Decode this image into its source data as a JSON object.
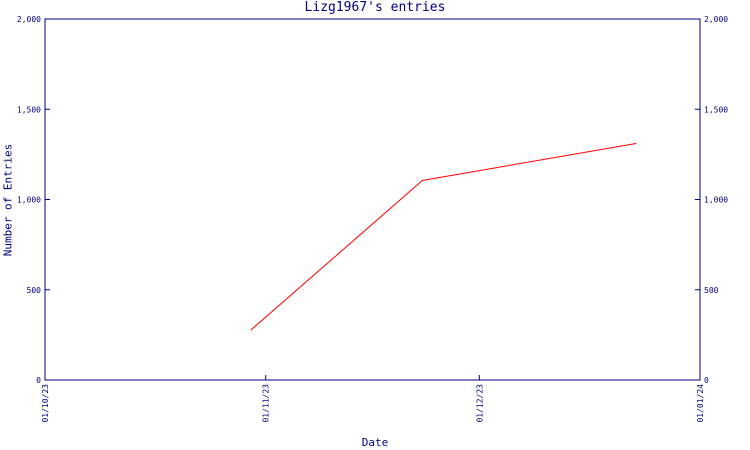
{
  "chart_data": {
    "type": "line",
    "title": "Lizg1967's entries",
    "xlabel": "Date",
    "ylabel": "Number of Entries",
    "x_ticks": [
      "01/10/23",
      "01/11/23",
      "01/12/23",
      "01/01/24"
    ],
    "y_ticks": [
      "0",
      "500",
      "1,000",
      "1,500",
      "2,000"
    ],
    "ylim": [
      0,
      2000
    ],
    "xlim": [
      "2023-10-01",
      "2024-01-01"
    ],
    "grid": false,
    "series": [
      {
        "color": "#ff0000",
        "points": [
          {
            "x": "2023-10-30",
            "y": 280
          },
          {
            "x": "2023-11-23",
            "y": 1105
          },
          {
            "x": "2023-12-23",
            "y": 1310
          }
        ]
      }
    ],
    "colors": {
      "axis": "#000080",
      "line": "#ff0000",
      "background": "#ffffff"
    }
  }
}
